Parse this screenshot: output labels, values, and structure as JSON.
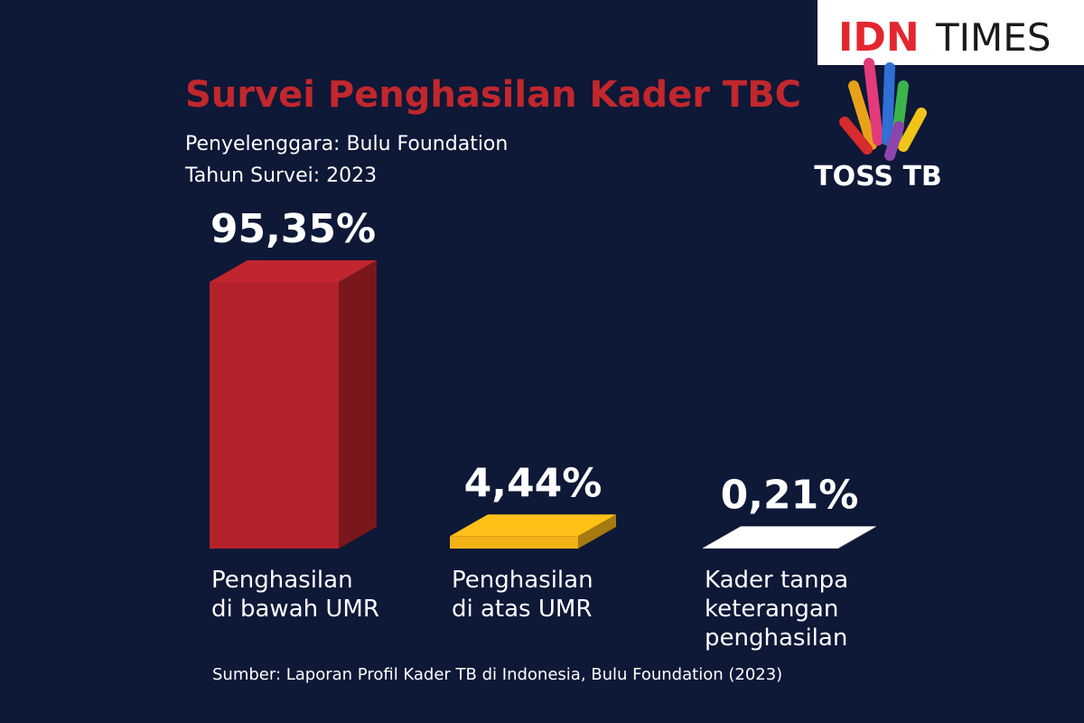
{
  "chart_data": {
    "type": "bar3d",
    "title": "Survei Penghasilan Kader TBC",
    "subtitle": "Penyelenggara: Bulu Foundation",
    "subtitle2": "Tahun Survei: 2023",
    "categories": [
      "Penghasilan\ndi bawah UMR",
      "Penghasilan\ndi atas UMR",
      "Kader tanpa\nketerangan\npenghasilan"
    ],
    "values": [
      95.35,
      4.44,
      0.21
    ],
    "value_labels": [
      "95,35%",
      "4,44%",
      "0,21%"
    ],
    "colors": [
      "#b3222b",
      "#f2b316",
      "#efefef"
    ],
    "source": "Sumber: Laporan Profil Kader TB di Indonesia, Bulu Foundation (2023)",
    "brand_red": "IDN",
    "brand_dark": "TIMES",
    "logo_text": "TOSS TB"
  }
}
